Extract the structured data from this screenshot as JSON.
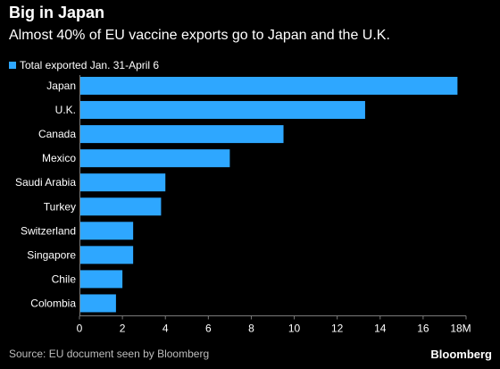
{
  "header": {
    "title": "Big in Japan",
    "subtitle": "Almost 40% of EU vaccine exports go to Japan and the U.K."
  },
  "footer": {
    "source": "Source: EU document seen by Bloomberg",
    "brand": "Bloomberg"
  },
  "colors": {
    "bar": "#2ea7ff",
    "background": "#000000",
    "text": "#ffffff",
    "muted": "#bdbdbd",
    "axis": "#7a7a7a"
  },
  "chart_data": {
    "type": "bar",
    "orientation": "horizontal",
    "categories": [
      "Japan",
      "U.K.",
      "Canada",
      "Mexico",
      "Saudi Arabia",
      "Turkey",
      "Switzerland",
      "Singapore",
      "Chile",
      "Colombia"
    ],
    "series": [
      {
        "name": "Total exported Jan. 31-April 6",
        "values": [
          17.6,
          13.3,
          9.5,
          7.0,
          4.0,
          3.8,
          2.5,
          2.5,
          2.0,
          1.7
        ]
      }
    ],
    "xlim": [
      0,
      18
    ],
    "xticks": [
      "0",
      "2",
      "4",
      "6",
      "8",
      "10",
      "12",
      "14",
      "16",
      "18M"
    ],
    "grid": false,
    "legend_position": "top-left"
  }
}
